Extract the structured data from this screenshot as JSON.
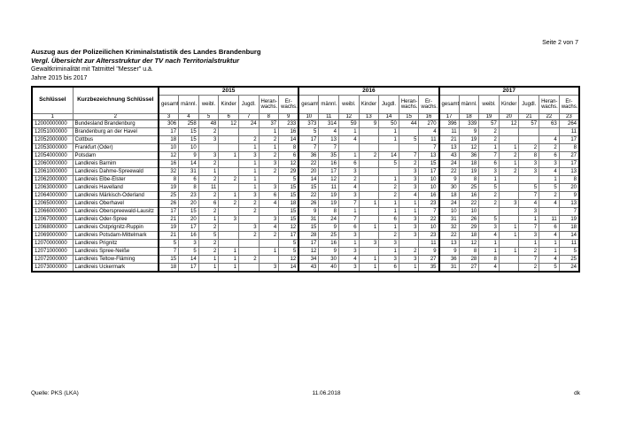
{
  "page": {
    "page_label": "Seite 2 von 7",
    "title_line1": "Auszug aus der Polizeilichen Kriminalstatistik des Landes Brandenburg",
    "title_line2": "Vergl. Übersicht zur Altersstruktur der TV nach Territorialstruktur",
    "subtitle": "Gewaltkriminalität mit Tatmittel \"Messer\" u.ä.",
    "period": "Jahre 2015 bis 2017",
    "footer": {
      "source": "Quelle: PKS (LKA)",
      "date": "11.06.2018",
      "initials": "dk"
    }
  },
  "table": {
    "headers": {
      "schluessel": "Schlüssel",
      "kurzbezeichnung": "Kurzbezeichnung\nSchlüssel"
    },
    "years": [
      "2015",
      "2016",
      "2017"
    ],
    "measures": [
      "gesamt",
      "männl.",
      "weibl.",
      "Kinder",
      "Jugdl.",
      "Heran-\nwachs.",
      "Er-\nwachs."
    ],
    "column_numbers": [
      "1",
      "2",
      "3",
      "4",
      "5",
      "6",
      "7",
      "8",
      "9",
      "10",
      "11",
      "12",
      "13",
      "14",
      "15",
      "16",
      "17",
      "18",
      "19",
      "20",
      "21",
      "22",
      "23"
    ],
    "rows": [
      {
        "key": "12000000000",
        "name": "Bundesland Brandenburg",
        "y2015": [
          "306",
          "258",
          "48",
          "12",
          "24",
          "37",
          "233"
        ],
        "y2016": [
          "373",
          "314",
          "59",
          "9",
          "50",
          "44",
          "270"
        ],
        "y2017": [
          "396",
          "339",
          "57",
          "12",
          "57",
          "63",
          "264"
        ]
      },
      {
        "key": "12051000000",
        "name": "Brandenburg an der Havel",
        "y2015": [
          "17",
          "15",
          "2",
          "",
          "",
          "1",
          "16"
        ],
        "y2016": [
          "5",
          "4",
          "1",
          "",
          "1",
          "",
          "4"
        ],
        "y2017": [
          "11",
          "9",
          "2",
          "",
          "",
          "",
          "11"
        ]
      },
      {
        "key": "12052000000",
        "name": "Cottbus",
        "y2015": [
          "18",
          "15",
          "3",
          "",
          "2",
          "2",
          "14"
        ],
        "y2016": [
          "17",
          "13",
          "4",
          "",
          "1",
          "5",
          "11"
        ],
        "y2017": [
          "21",
          "19",
          "2",
          "",
          "",
          "4",
          "17"
        ]
      },
      {
        "key": "12053000000",
        "name": "Frankfurt (Oder)",
        "y2015": [
          "10",
          "10",
          "",
          "",
          "1",
          "1",
          "8"
        ],
        "y2016": [
          "7",
          "7",
          "",
          "",
          "",
          "",
          "7"
        ],
        "y2017": [
          "13",
          "12",
          "1",
          "1",
          "2",
          "2",
          "8"
        ]
      },
      {
        "key": "12054000000",
        "name": "Potsdam",
        "y2015": [
          "12",
          "9",
          "3",
          "1",
          "3",
          "2",
          "6"
        ],
        "y2016": [
          "36",
          "35",
          "1",
          "2",
          "14",
          "7",
          "13"
        ],
        "y2017": [
          "43",
          "36",
          "7",
          "2",
          "8",
          "6",
          "27"
        ]
      },
      {
        "key": "12060000000",
        "name": "Landkreis Barnim",
        "y2015": [
          "16",
          "14",
          "2",
          "",
          "1",
          "3",
          "12"
        ],
        "y2016": [
          "22",
          "16",
          "6",
          "",
          "5",
          "2",
          "15"
        ],
        "y2017": [
          "24",
          "18",
          "6",
          "1",
          "3",
          "3",
          "17"
        ]
      },
      {
        "key": "12061000000",
        "name": "Landkreis Dahme-Spreewald",
        "y2015": [
          "32",
          "31",
          "1",
          "",
          "1",
          "2",
          "29"
        ],
        "y2016": [
          "20",
          "17",
          "3",
          "",
          "",
          "3",
          "17"
        ],
        "y2017": [
          "22",
          "19",
          "3",
          "2",
          "3",
          "4",
          "13"
        ]
      },
      {
        "key": "12062000000",
        "name": "Landkreis Elbe-Elster",
        "y2015": [
          "8",
          "6",
          "2",
          "2",
          "1",
          "",
          "5"
        ],
        "y2016": [
          "14",
          "12",
          "2",
          "",
          "1",
          "3",
          "10"
        ],
        "y2017": [
          "9",
          "8",
          "1",
          "",
          "",
          "1",
          "8"
        ]
      },
      {
        "key": "12063000000",
        "name": "Landkreis Havelland",
        "y2015": [
          "19",
          "8",
          "11",
          "",
          "1",
          "3",
          "15"
        ],
        "y2016": [
          "15",
          "11",
          "4",
          "",
          "2",
          "3",
          "10"
        ],
        "y2017": [
          "30",
          "25",
          "5",
          "",
          "5",
          "5",
          "20"
        ]
      },
      {
        "key": "12064000000",
        "name": "Landkreis Märkisch-Oderland",
        "y2015": [
          "25",
          "23",
          "2",
          "1",
          "3",
          "6",
          "15"
        ],
        "y2016": [
          "22",
          "19",
          "3",
          "",
          "2",
          "4",
          "16"
        ],
        "y2017": [
          "18",
          "16",
          "2",
          "",
          "7",
          "2",
          "9"
        ]
      },
      {
        "key": "12065000000",
        "name": "Landkreis Oberhavel",
        "y2015": [
          "26",
          "20",
          "6",
          "2",
          "2",
          "4",
          "18"
        ],
        "y2016": [
          "26",
          "19",
          "7",
          "1",
          "1",
          "1",
          "23"
        ],
        "y2017": [
          "24",
          "22",
          "2",
          "3",
          "4",
          "4",
          "13"
        ]
      },
      {
        "key": "12066000000",
        "name": "Landkreis Oberspreewald-Lausitz",
        "y2015": [
          "17",
          "15",
          "2",
          "",
          "2",
          "",
          "15"
        ],
        "y2016": [
          "9",
          "8",
          "1",
          "",
          "1",
          "1",
          "7"
        ],
        "y2017": [
          "10",
          "10",
          "",
          "",
          "3",
          "",
          "7"
        ]
      },
      {
        "key": "12067000000",
        "name": "Landkreis Oder-Spree",
        "y2015": [
          "21",
          "20",
          "1",
          "3",
          "",
          "3",
          "15"
        ],
        "y2016": [
          "31",
          "24",
          "7",
          "",
          "6",
          "3",
          "22"
        ],
        "y2017": [
          "31",
          "26",
          "5",
          "",
          "1",
          "11",
          "19"
        ]
      },
      {
        "key": "12068000000",
        "name": "Landkreis Ostprignitz-Ruppin",
        "y2015": [
          "19",
          "17",
          "2",
          "",
          "3",
          "4",
          "12"
        ],
        "y2016": [
          "15",
          "9",
          "6",
          "1",
          "1",
          "3",
          "10"
        ],
        "y2017": [
          "32",
          "29",
          "3",
          "1",
          "7",
          "6",
          "18"
        ]
      },
      {
        "key": "12069000000",
        "name": "Landkreis Potsdam-Mittelmark",
        "y2015": [
          "21",
          "16",
          "5",
          "",
          "2",
          "2",
          "17"
        ],
        "y2016": [
          "28",
          "25",
          "3",
          "",
          "2",
          "3",
          "23"
        ],
        "y2017": [
          "22",
          "18",
          "4",
          "1",
          "3",
          "4",
          "14"
        ]
      },
      {
        "key": "12070000000",
        "name": "Landkreis Prignitz",
        "y2015": [
          "5",
          "3",
          "2",
          "",
          "",
          "",
          "5"
        ],
        "y2016": [
          "17",
          "16",
          "1",
          "3",
          "3",
          "",
          "11"
        ],
        "y2017": [
          "13",
          "12",
          "1",
          "",
          "1",
          "1",
          "11"
        ]
      },
      {
        "key": "12071000000",
        "name": "Landkreis Spree-Neiße",
        "y2015": [
          "7",
          "5",
          "2",
          "1",
          "",
          "1",
          "5"
        ],
        "y2016": [
          "12",
          "9",
          "3",
          "",
          "1",
          "2",
          "9"
        ],
        "y2017": [
          "9",
          "8",
          "1",
          "1",
          "2",
          "1",
          "5"
        ]
      },
      {
        "key": "12072000000",
        "name": "Landkreis Teltow-Fläming",
        "y2015": [
          "15",
          "14",
          "1",
          "1",
          "2",
          "",
          "12"
        ],
        "y2016": [
          "34",
          "30",
          "4",
          "1",
          "3",
          "3",
          "27"
        ],
        "y2017": [
          "36",
          "28",
          "8",
          "",
          "7",
          "4",
          "25"
        ]
      },
      {
        "key": "12073000000",
        "name": "Landkreis Uckermark",
        "y2015": [
          "18",
          "17",
          "1",
          "1",
          "",
          "3",
          "14"
        ],
        "y2016": [
          "43",
          "40",
          "3",
          "1",
          "6",
          "1",
          "35"
        ],
        "y2017": [
          "31",
          "27",
          "4",
          "",
          "2",
          "5",
          "24"
        ]
      }
    ]
  }
}
